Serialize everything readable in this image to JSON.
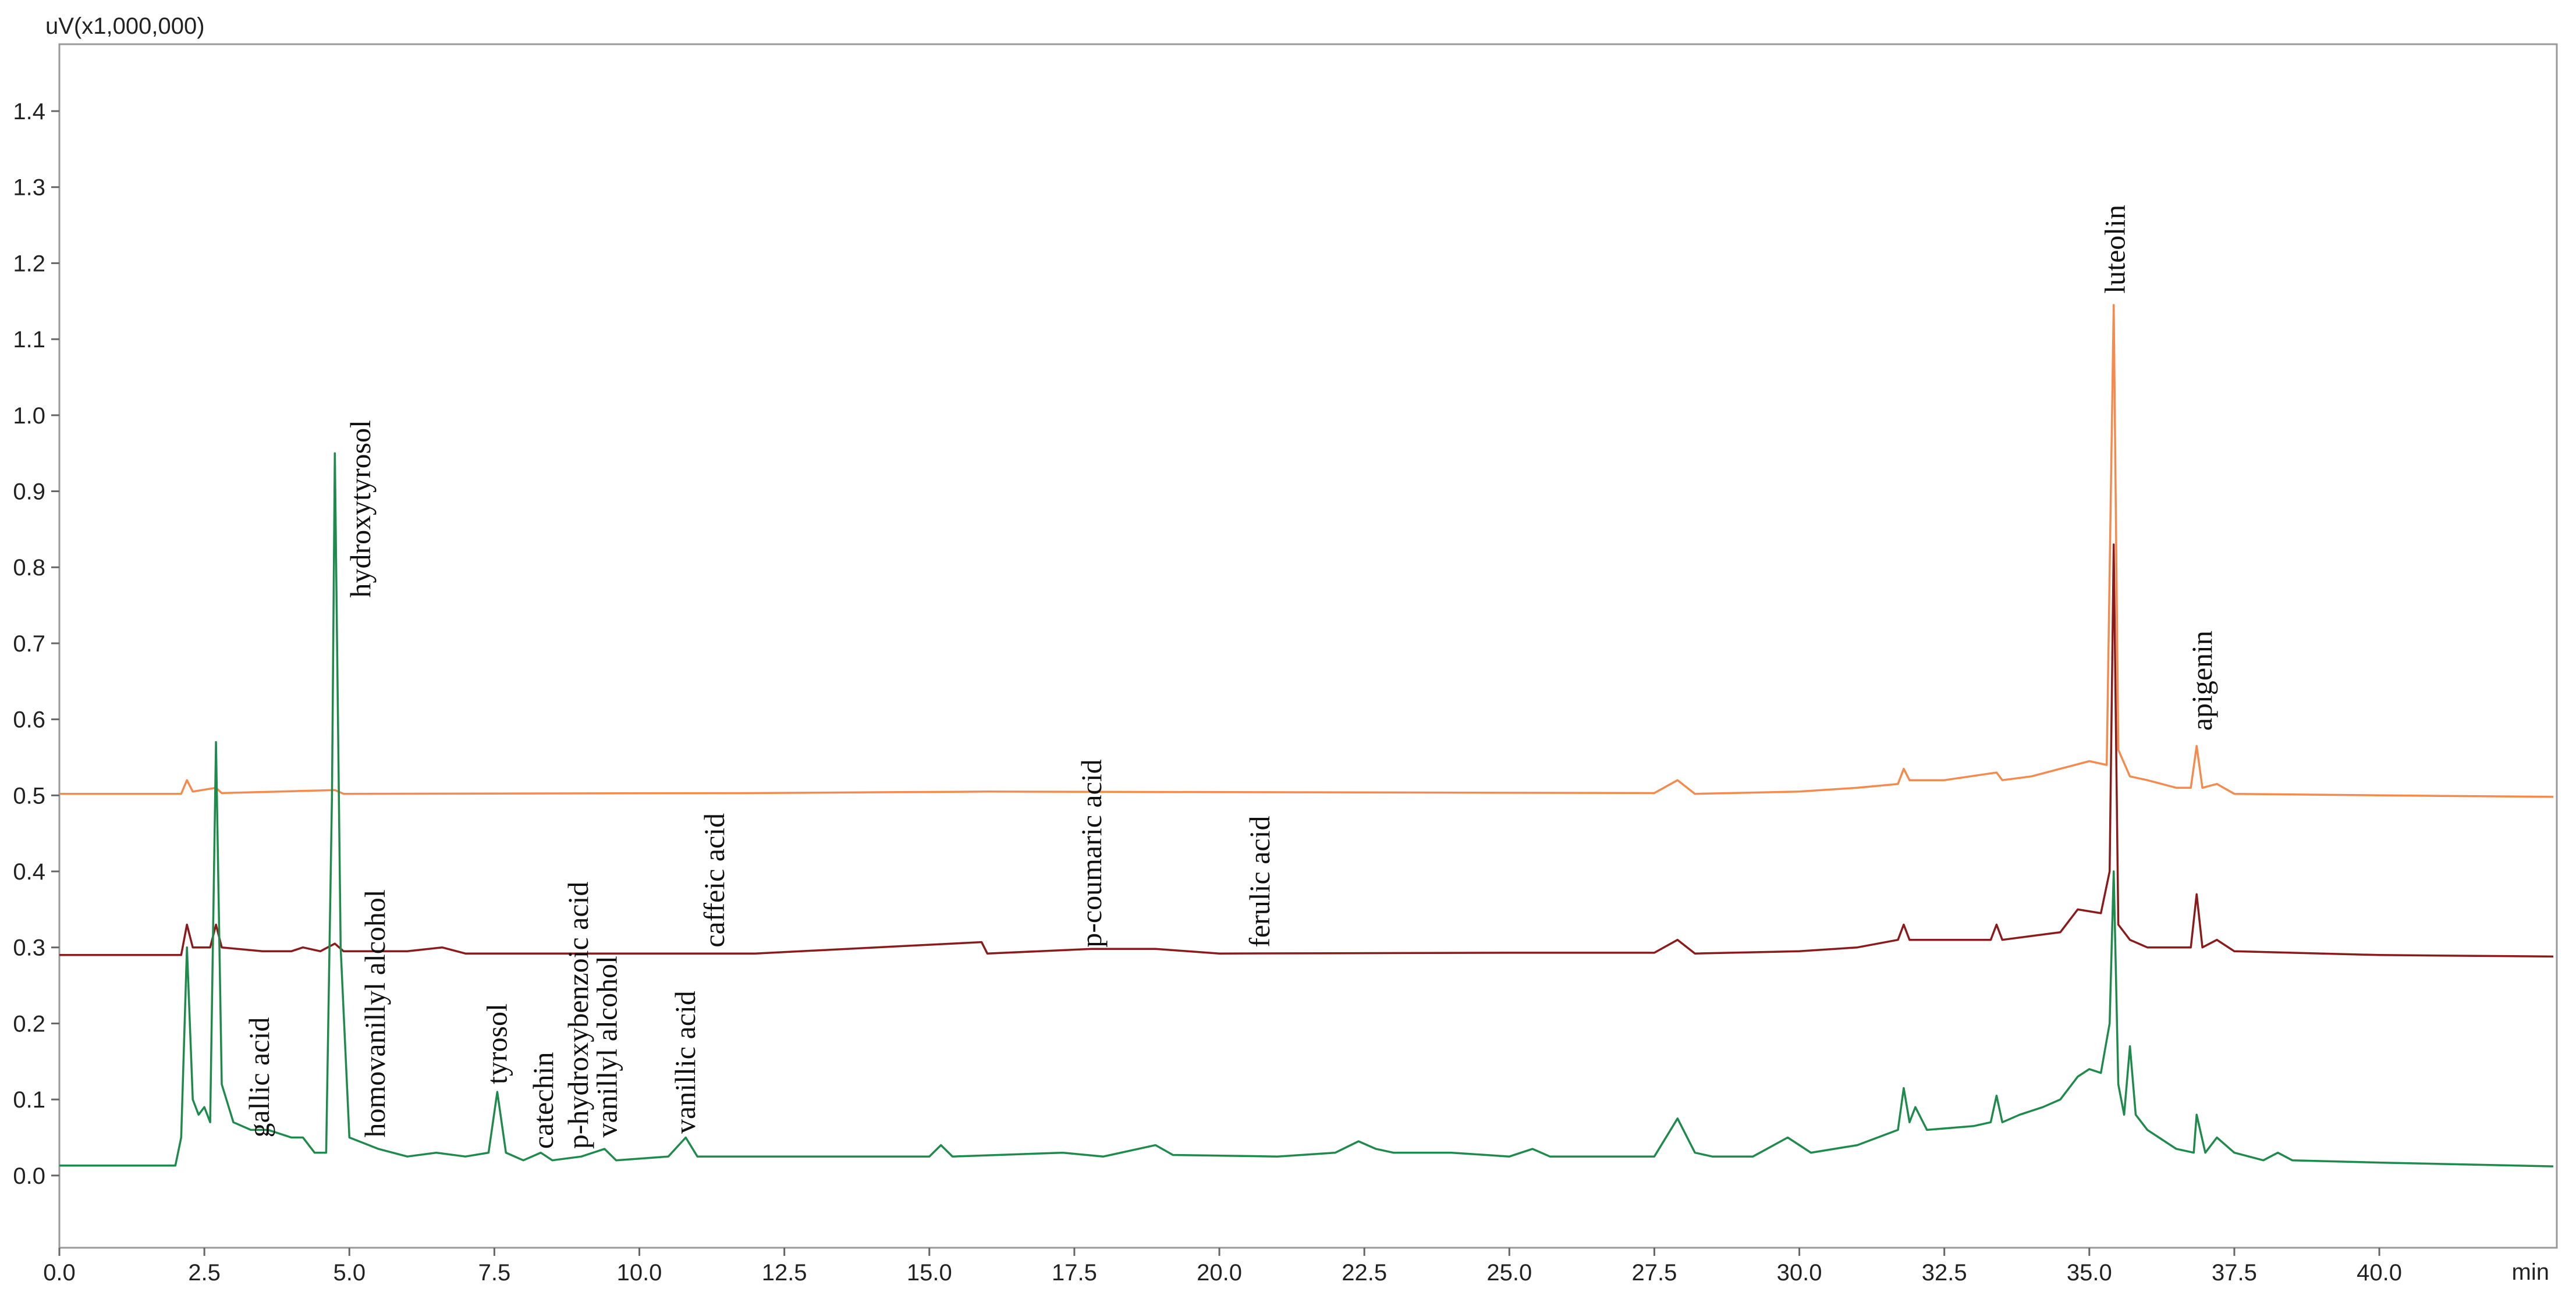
{
  "chart_data": {
    "type": "line",
    "ylabel": "uV(x1,000,000)",
    "xlabel": "min",
    "xlim": [
      0,
      43.06
    ],
    "ylim": [
      -0.095,
      1.488
    ],
    "xticks": [
      {
        "value": 0,
        "label": "0.0"
      },
      2.5,
      {
        "value": 5,
        "label": "5.0"
      },
      7.5,
      {
        "value": 10,
        "label": "10.0"
      },
      12.5,
      {
        "value": 15,
        "label": "15.0"
      },
      17.5,
      {
        "value": 20,
        "label": "20.0"
      },
      22.5,
      {
        "value": 25,
        "label": "25.0"
      },
      27.5,
      {
        "value": 30,
        "label": "30.0"
      },
      32.5,
      {
        "value": 35,
        "label": "35.0"
      },
      37.5,
      {
        "value": 40,
        "label": "40.0"
      }
    ],
    "yticks": [
      {
        "value": 0,
        "label": "0.0"
      },
      0.1,
      0.2,
      0.3,
      0.4,
      0.5,
      0.6,
      0.7,
      0.8,
      0.9,
      {
        "value": 1,
        "label": "1.0"
      },
      1.1,
      1.2,
      1.3,
      1.4
    ],
    "series": [
      {
        "color": "#f58a4e",
        "x": [
          0,
          2.1,
          2.2,
          2.3,
          2.7,
          2.8,
          4.75,
          4.9,
          12,
          16,
          27.5,
          27.9,
          28.2,
          30,
          31,
          31.7,
          31.8,
          31.9,
          32.5,
          33.4,
          33.5,
          34,
          34.5,
          35,
          35.3,
          35.42,
          35.5,
          35.7,
          36,
          36.5,
          36.75,
          36.85,
          36.95,
          37.2,
          37.5,
          40,
          43
        ],
        "values": [
          0.502,
          0.502,
          0.52,
          0.505,
          0.51,
          0.503,
          0.507,
          0.502,
          0.503,
          0.505,
          0.503,
          0.52,
          0.502,
          0.505,
          0.51,
          0.515,
          0.535,
          0.52,
          0.52,
          0.53,
          0.52,
          0.525,
          0.535,
          0.545,
          0.54,
          1.145,
          0.56,
          0.525,
          0.52,
          0.51,
          0.51,
          0.565,
          0.51,
          0.515,
          0.502,
          0.5,
          0.498
        ]
      },
      {
        "color": "#8b1a1a",
        "x": [
          0,
          2.1,
          2.2,
          2.3,
          2.6,
          2.7,
          2.8,
          3.5,
          4.0,
          4.2,
          4.5,
          4.75,
          4.9,
          6,
          6.6,
          7,
          12,
          15.9,
          16,
          17.8,
          18.9,
          20,
          25,
          27.5,
          27.9,
          28.2,
          30,
          31,
          31.7,
          31.8,
          31.9,
          32.5,
          33.3,
          33.4,
          33.5,
          34,
          34.5,
          34.8,
          35.2,
          35.35,
          35.42,
          35.5,
          35.7,
          36,
          36.5,
          36.75,
          36.85,
          36.95,
          37.2,
          37.5,
          40,
          43
        ],
        "values": [
          0.29,
          0.29,
          0.33,
          0.3,
          0.3,
          0.33,
          0.3,
          0.295,
          0.295,
          0.3,
          0.295,
          0.305,
          0.295,
          0.295,
          0.3,
          0.292,
          0.292,
          0.307,
          0.292,
          0.298,
          0.298,
          0.292,
          0.293,
          0.293,
          0.31,
          0.292,
          0.295,
          0.3,
          0.31,
          0.33,
          0.31,
          0.31,
          0.31,
          0.33,
          0.31,
          0.315,
          0.32,
          0.35,
          0.345,
          0.4,
          0.83,
          0.33,
          0.31,
          0.3,
          0.3,
          0.3,
          0.37,
          0.3,
          0.31,
          0.295,
          0.29,
          0.288
        ]
      },
      {
        "color": "#1e8a4c",
        "x": [
          0,
          2.0,
          2.1,
          2.2,
          2.3,
          2.4,
          2.5,
          2.6,
          2.7,
          2.8,
          3.0,
          3.3,
          3.6,
          4.0,
          4.2,
          4.4,
          4.6,
          4.7,
          4.75,
          4.85,
          5.0,
          5.5,
          6.0,
          6.5,
          7.0,
          7.4,
          7.55,
          7.7,
          8.0,
          8.3,
          8.5,
          9.0,
          9.2,
          9.4,
          9.6,
          10.5,
          10.8,
          11.0,
          12,
          14,
          15,
          15.2,
          15.4,
          17.3,
          18,
          18.9,
          19.2,
          21,
          22,
          22.4,
          22.7,
          23,
          24,
          25,
          25.4,
          25.7,
          27.5,
          27.9,
          28.2,
          28.5,
          29.2,
          29.8,
          30.2,
          31,
          31.7,
          31.8,
          31.9,
          32,
          32.2,
          33.0,
          33.3,
          33.4,
          33.5,
          33.8,
          34.2,
          34.5,
          34.8,
          35.0,
          35.2,
          35.35,
          35.42,
          35.5,
          35.6,
          35.7,
          35.8,
          36.0,
          36.2,
          36.5,
          36.8,
          36.85,
          37.0,
          37.2,
          37.5,
          38,
          38.25,
          38.5,
          40,
          43
        ],
        "values": [
          0.013,
          0.013,
          0.05,
          0.3,
          0.1,
          0.08,
          0.09,
          0.07,
          0.57,
          0.12,
          0.07,
          0.06,
          0.06,
          0.05,
          0.05,
          0.03,
          0.03,
          0.5,
          0.95,
          0.3,
          0.05,
          0.035,
          0.025,
          0.03,
          0.025,
          0.03,
          0.11,
          0.03,
          0.02,
          0.03,
          0.02,
          0.025,
          0.03,
          0.035,
          0.02,
          0.025,
          0.05,
          0.025,
          0.025,
          0.025,
          0.025,
          0.04,
          0.025,
          0.03,
          0.025,
          0.04,
          0.027,
          0.025,
          0.03,
          0.045,
          0.035,
          0.03,
          0.03,
          0.025,
          0.035,
          0.025,
          0.025,
          0.075,
          0.03,
          0.025,
          0.025,
          0.05,
          0.03,
          0.04,
          0.06,
          0.115,
          0.07,
          0.09,
          0.06,
          0.065,
          0.07,
          0.105,
          0.07,
          0.08,
          0.09,
          0.1,
          0.13,
          0.14,
          0.135,
          0.2,
          0.4,
          0.12,
          0.08,
          0.17,
          0.08,
          0.06,
          0.05,
          0.035,
          0.03,
          0.08,
          0.03,
          0.05,
          0.03,
          0.02,
          0.03,
          0.02,
          0.017,
          0.012
        ]
      }
    ],
    "annotations": [
      {
        "text": "gallic acid",
        "x": 3.45,
        "y": 0.05
      },
      {
        "text": "hydroxytyrosol",
        "x": 5.2,
        "y": 0.76
      },
      {
        "text": "homovanillyl alcohol",
        "x": 5.45,
        "y": 0.05
      },
      {
        "text": "tyrosol",
        "x": 7.55,
        "y": 0.12
      },
      {
        "text": "catechin",
        "x": 8.35,
        "y": 0.035
      },
      {
        "text": "p-hydroxybenzoic acid",
        "x": 8.95,
        "y": 0.035
      },
      {
        "text": "vanillyl alcohol",
        "x": 9.45,
        "y": 0.05
      },
      {
        "text": "vanillic acid",
        "x": 10.8,
        "y": 0.055
      },
      {
        "text": "caffeic acid",
        "x": 11.3,
        "y": 0.3
      },
      {
        "text": "p-coumaric acid",
        "x": 17.8,
        "y": 0.3
      },
      {
        "text": "ferulic acid",
        "x": 20.7,
        "y": 0.3
      },
      {
        "text": "luteolin",
        "x": 35.45,
        "y": 1.16
      },
      {
        "text": "apigenin",
        "x": 36.95,
        "y": 0.585
      }
    ]
  }
}
